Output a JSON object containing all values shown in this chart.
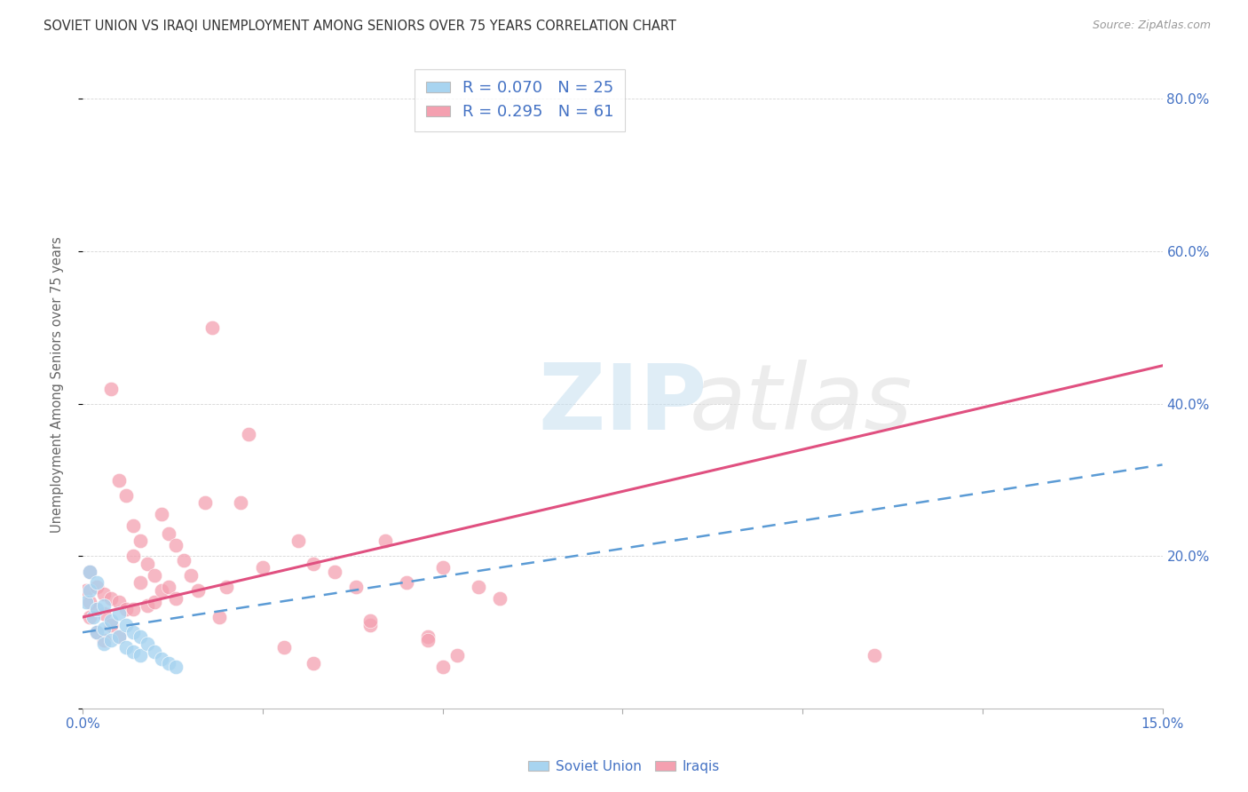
{
  "title": "SOVIET UNION VS IRAQI UNEMPLOYMENT AMONG SENIORS OVER 75 YEARS CORRELATION CHART",
  "source": "Source: ZipAtlas.com",
  "ylabel": "Unemployment Among Seniors over 75 years",
  "xlim": [
    0.0,
    0.15
  ],
  "ylim": [
    0.0,
    0.85
  ],
  "soviet_R": 0.07,
  "soviet_N": 25,
  "iraqi_R": 0.295,
  "iraqi_N": 61,
  "soviet_color": "#A8D4F0",
  "iraqi_color": "#F4A0B0",
  "soviet_line_color": "#5B9BD5",
  "iraqi_line_color": "#E05080",
  "tick_color": "#4472C4",
  "ytick_positions": [
    0.0,
    0.2,
    0.4,
    0.6,
    0.8
  ],
  "ytick_labels_right": [
    "",
    "20.0%",
    "40.0%",
    "60.0%",
    "80.0%"
  ],
  "xtick_positions": [
    0.0,
    0.025,
    0.05,
    0.075,
    0.1,
    0.125,
    0.15
  ],
  "xtick_labels": [
    "0.0%",
    "",
    "",
    "",
    "",
    "",
    "15.0%"
  ],
  "soviet_x": [
    0.0005,
    0.001,
    0.001,
    0.0015,
    0.002,
    0.002,
    0.002,
    0.003,
    0.003,
    0.003,
    0.004,
    0.004,
    0.005,
    0.005,
    0.006,
    0.006,
    0.007,
    0.007,
    0.008,
    0.008,
    0.009,
    0.01,
    0.011,
    0.012,
    0.013
  ],
  "soviet_y": [
    0.14,
    0.18,
    0.155,
    0.12,
    0.165,
    0.13,
    0.1,
    0.135,
    0.105,
    0.085,
    0.115,
    0.09,
    0.125,
    0.095,
    0.11,
    0.08,
    0.1,
    0.075,
    0.095,
    0.07,
    0.085,
    0.075,
    0.065,
    0.06,
    0.055
  ],
  "iraqi_x": [
    0.0005,
    0.001,
    0.001,
    0.001,
    0.002,
    0.002,
    0.002,
    0.003,
    0.003,
    0.003,
    0.004,
    0.004,
    0.004,
    0.005,
    0.005,
    0.005,
    0.006,
    0.006,
    0.007,
    0.007,
    0.007,
    0.008,
    0.008,
    0.009,
    0.009,
    0.01,
    0.01,
    0.011,
    0.011,
    0.012,
    0.012,
    0.013,
    0.013,
    0.014,
    0.015,
    0.016,
    0.017,
    0.018,
    0.019,
    0.02,
    0.022,
    0.023,
    0.025,
    0.03,
    0.032,
    0.035,
    0.038,
    0.04,
    0.042,
    0.045,
    0.048,
    0.05,
    0.052,
    0.055,
    0.058,
    0.11,
    0.028,
    0.032,
    0.04,
    0.048,
    0.05
  ],
  "iraqi_y": [
    0.155,
    0.18,
    0.14,
    0.12,
    0.16,
    0.13,
    0.1,
    0.15,
    0.125,
    0.09,
    0.42,
    0.145,
    0.11,
    0.3,
    0.14,
    0.095,
    0.28,
    0.13,
    0.24,
    0.2,
    0.13,
    0.22,
    0.165,
    0.19,
    0.135,
    0.175,
    0.14,
    0.255,
    0.155,
    0.23,
    0.16,
    0.215,
    0.145,
    0.195,
    0.175,
    0.155,
    0.27,
    0.5,
    0.12,
    0.16,
    0.27,
    0.36,
    0.185,
    0.22,
    0.19,
    0.18,
    0.16,
    0.11,
    0.22,
    0.165,
    0.095,
    0.185,
    0.07,
    0.16,
    0.145,
    0.07,
    0.08,
    0.06,
    0.115,
    0.09,
    0.055
  ]
}
